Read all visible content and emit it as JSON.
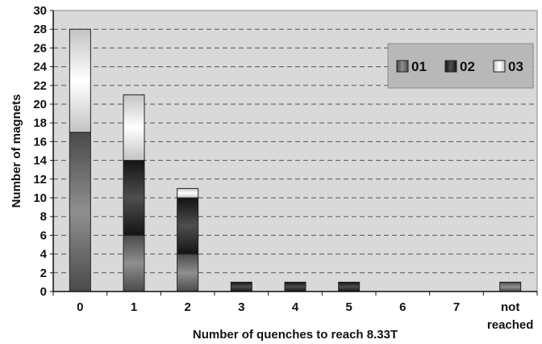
{
  "chart_data": {
    "type": "bar",
    "stacked": true,
    "title": "",
    "xlabel": "Number of quenches to reach 8.33T",
    "ylabel": "Number of magnets",
    "ylim": [
      0,
      30
    ],
    "ytick_step": 2,
    "grid": "horizontal dashed",
    "legend_position": "top-right",
    "categories": [
      {
        "line1": "0",
        "line2": ""
      },
      {
        "line1": "1",
        "line2": ""
      },
      {
        "line1": "2",
        "line2": ""
      },
      {
        "line1": "3",
        "line2": ""
      },
      {
        "line1": "4",
        "line2": ""
      },
      {
        "line1": "5",
        "line2": ""
      },
      {
        "line1": "6",
        "line2": ""
      },
      {
        "line1": "7",
        "line2": ""
      },
      {
        "line1": "not",
        "line2": "reached"
      }
    ],
    "series": [
      {
        "name": "01",
        "values": [
          17,
          6,
          4,
          0,
          0,
          0,
          0,
          0,
          1
        ],
        "colors": [
          "#4a4a4a",
          "#8f8f8f",
          "#4a4a4a"
        ]
      },
      {
        "name": "02",
        "values": [
          0,
          8,
          6,
          1,
          1,
          1,
          0,
          0,
          0
        ],
        "colors": [
          "#141414",
          "#4e4e4e",
          "#141414"
        ]
      },
      {
        "name": "03",
        "values": [
          11,
          7,
          1,
          0,
          0,
          0,
          0,
          0,
          0
        ],
        "colors": [
          "#c4c4c4",
          "#ffffff",
          "#c4c4c4"
        ]
      }
    ]
  }
}
